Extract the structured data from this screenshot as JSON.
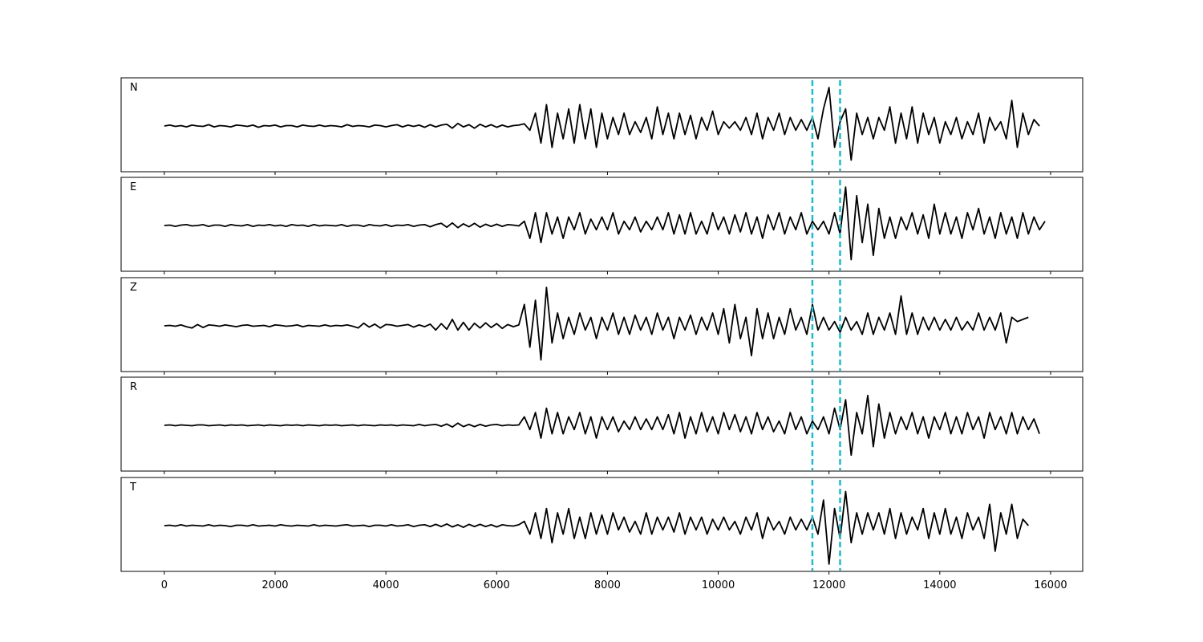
{
  "chart_data": {
    "type": "line",
    "title": "",
    "xlabel": "",
    "ylabel": "",
    "xlim": [
      -780,
      16580
    ],
    "ylim": [
      -1.1,
      1.1
    ],
    "grid": false,
    "x_ticks": [
      0,
      2000,
      4000,
      6000,
      8000,
      10000,
      12000,
      14000,
      16000
    ],
    "x_tick_labels": [
      "0",
      "2000",
      "4000",
      "6000",
      "8000",
      "10000",
      "12000",
      "14000",
      "16000"
    ],
    "sample_step": 100,
    "x_start": 0,
    "markers": {
      "x": [
        11700,
        12200
      ],
      "color": "#17becf",
      "style": "dashed"
    },
    "line_color": "#000000",
    "panels": [
      {
        "label": "N",
        "values": [
          0,
          0.02,
          -0.01,
          0.01,
          -0.02,
          0.02,
          0,
          -0.01,
          0.03,
          -0.02,
          0.01,
          0,
          -0.02,
          0.02,
          0.01,
          -0.01,
          0.02,
          -0.03,
          0.01,
          0,
          0.02,
          -0.02,
          0.01,
          0.01,
          -0.02,
          0.02,
          0,
          -0.01,
          0.02,
          -0.01,
          0.01,
          0,
          -0.02,
          0.03,
          -0.01,
          0.01,
          0,
          -0.02,
          0.02,
          0.01,
          -0.02,
          0.01,
          0.03,
          -0.02,
          0.02,
          -0.01,
          0.02,
          -0.03,
          0.03,
          -0.02,
          0.02,
          0.04,
          -0.05,
          0.06,
          -0.02,
          0.03,
          -0.05,
          0.04,
          -0.02,
          0.03,
          -0.03,
          0.02,
          -0.02,
          0.01,
          0.02,
          0.05,
          -0.1,
          0.3,
          -0.4,
          0.5,
          -0.5,
          0.3,
          -0.3,
          0.4,
          -0.4,
          0.5,
          -0.3,
          0.4,
          -0.5,
          0.3,
          -0.3,
          0.2,
          -0.2,
          0.3,
          -0.2,
          0.1,
          -0.15,
          0.2,
          -0.3,
          0.45,
          -0.2,
          0.3,
          -0.3,
          0.3,
          -0.2,
          0.25,
          -0.3,
          0.2,
          -0.1,
          0.35,
          -0.2,
          0.1,
          -0.05,
          0.1,
          -0.1,
          0.2,
          -0.2,
          0.3,
          -0.3,
          0.2,
          -0.1,
          0.3,
          -0.2,
          0.2,
          -0.1,
          0.15,
          -0.1,
          0.2,
          -0.3,
          0.4,
          0.9,
          -0.5,
          0.1,
          0.4,
          -0.8,
          0.3,
          -0.2,
          0.2,
          -0.3,
          0.2,
          -0.1,
          0.45,
          -0.4,
          0.3,
          -0.3,
          0.45,
          -0.4,
          0.3,
          -0.2,
          0.2,
          -0.4,
          0.1,
          -0.2,
          0.2,
          -0.3,
          0.1,
          -0.2,
          0.3,
          -0.4,
          0.2,
          -0.1,
          0.1,
          -0.3,
          0.6,
          -0.5,
          0.3,
          -0.2,
          0.15,
          0
        ]
      },
      {
        "label": "E",
        "values": [
          0,
          0.01,
          -0.02,
          0.01,
          0.02,
          -0.01,
          0,
          0.02,
          -0.02,
          0.01,
          0.01,
          -0.02,
          0.02,
          0,
          -0.01,
          0.02,
          -0.02,
          0.01,
          0,
          0.02,
          -0.01,
          0.01,
          -0.02,
          0.02,
          0,
          0.01,
          -0.02,
          0.02,
          -0.01,
          0.01,
          0,
          -0.01,
          0.02,
          -0.02,
          0.01,
          0.01,
          -0.02,
          0.02,
          0,
          -0.01,
          0.02,
          -0.02,
          0.01,
          0,
          0.02,
          -0.02,
          0.01,
          0.02,
          -0.03,
          0.02,
          0.05,
          -0.04,
          0.06,
          -0.05,
          0.04,
          -0.03,
          0.05,
          -0.04,
          0.03,
          -0.02,
          0.03,
          -0.02,
          0.02,
          0.01,
          -0.01,
          0.1,
          -0.3,
          0.3,
          -0.4,
          0.3,
          -0.2,
          0.2,
          -0.3,
          0.2,
          -0.1,
          0.3,
          -0.2,
          0.15,
          -0.1,
          0.2,
          -0.1,
          0.3,
          -0.2,
          0.1,
          -0.1,
          0.2,
          -0.15,
          0.1,
          -0.1,
          0.2,
          -0.1,
          0.3,
          -0.2,
          0.25,
          -0.2,
          0.3,
          -0.2,
          0.1,
          -0.2,
          0.3,
          -0.1,
          0.2,
          -0.2,
          0.25,
          -0.15,
          0.3,
          -0.2,
          0.2,
          -0.3,
          0.25,
          -0.1,
          0.3,
          -0.2,
          0.2,
          -0.1,
          0.3,
          -0.2,
          0.1,
          -0.1,
          0.1,
          -0.2,
          0.3,
          -0.2,
          0.9,
          -0.8,
          0.7,
          -0.4,
          0.5,
          -0.7,
          0.4,
          -0.3,
          0.2,
          -0.3,
          0.2,
          -0.1,
          0.3,
          -0.2,
          0.25,
          -0.3,
          0.5,
          -0.2,
          0.3,
          -0.2,
          0.2,
          -0.3,
          0.3,
          -0.1,
          0.4,
          -0.2,
          0.2,
          -0.3,
          0.3,
          -0.2,
          0.2,
          -0.3,
          0.3,
          -0.2,
          0.2,
          -0.1,
          0.1
        ]
      },
      {
        "label": "Z",
        "values": [
          0,
          0.01,
          -0.01,
          0.02,
          -0.02,
          -0.05,
          0.03,
          -0.04,
          0.02,
          0.01,
          -0.01,
          0.02,
          0,
          -0.02,
          0.01,
          0.02,
          -0.01,
          0,
          0.01,
          -0.02,
          0.02,
          0.01,
          -0.01,
          0,
          0.02,
          -0.02,
          0.01,
          0,
          -0.01,
          0.02,
          -0.01,
          0.01,
          0,
          0.02,
          -0.01,
          -0.05,
          0.06,
          -0.03,
          0.04,
          -0.05,
          0.03,
          0.02,
          -0.01,
          0.01,
          0.03,
          -0.03,
          0.02,
          -0.02,
          0.04,
          -0.1,
          0.05,
          -0.08,
          0.15,
          -0.1,
          0.08,
          -0.1,
          0.06,
          -0.05,
          0.07,
          -0.04,
          0.05,
          -0.06,
          0.03,
          -0.02,
          0.02,
          0.5,
          -0.5,
          0.6,
          -0.8,
          0.9,
          -0.4,
          0.3,
          -0.3,
          0.2,
          -0.2,
          0.3,
          -0.1,
          0.2,
          -0.3,
          0.2,
          -0.1,
          0.3,
          -0.2,
          0.2,
          -0.2,
          0.25,
          -0.1,
          0.2,
          -0.2,
          0.3,
          -0.1,
          0.2,
          -0.3,
          0.2,
          -0.1,
          0.25,
          -0.2,
          0.2,
          -0.1,
          0.3,
          -0.2,
          0.4,
          -0.4,
          0.5,
          -0.3,
          0.2,
          -0.7,
          0.4,
          -0.3,
          0.3,
          -0.3,
          0.2,
          -0.2,
          0.4,
          -0.1,
          0.2,
          -0.2,
          0.5,
          -0.1,
          0.2,
          -0.1,
          0.1,
          -0.15,
          0.2,
          -0.1,
          0.1,
          -0.2,
          0.3,
          -0.2,
          0.2,
          -0.1,
          0.3,
          -0.2,
          0.7,
          -0.2,
          0.3,
          -0.2,
          0.2,
          -0.1,
          0.2,
          -0.1,
          0.15,
          -0.1,
          0.2,
          -0.1,
          0.1,
          -0.1,
          0.3,
          -0.1,
          0.2,
          -0.1,
          0.3,
          -0.4,
          0.2,
          0.1,
          0.15,
          0.2
        ]
      },
      {
        "label": "R",
        "values": [
          0,
          0.01,
          -0.01,
          0.01,
          0,
          -0.01,
          0.01,
          0.01,
          -0.01,
          0,
          0.01,
          -0.01,
          0.01,
          0,
          0.01,
          -0.01,
          0,
          0.01,
          -0.01,
          0.01,
          0,
          -0.01,
          0.01,
          0,
          0.01,
          -0.01,
          0.01,
          0,
          -0.01,
          0.01,
          0,
          0.01,
          -0.01,
          0,
          0.01,
          -0.01,
          0.01,
          0,
          -0.01,
          0.01,
          0,
          0.01,
          -0.01,
          0.01,
          0,
          -0.01,
          0.02,
          -0.01,
          0.01,
          0.02,
          -0.02,
          0.03,
          -0.04,
          0.05,
          -0.03,
          0.02,
          -0.03,
          0.02,
          -0.02,
          0.01,
          0.02,
          -0.01,
          0.01,
          0,
          0.01,
          0.2,
          -0.1,
          0.3,
          -0.3,
          0.4,
          -0.2,
          0.3,
          -0.2,
          0.2,
          -0.1,
          0.3,
          -0.2,
          0.2,
          -0.3,
          0.2,
          -0.1,
          0.2,
          -0.15,
          0.1,
          -0.1,
          0.2,
          -0.1,
          0.15,
          -0.1,
          0.2,
          -0.1,
          0.25,
          -0.2,
          0.3,
          -0.3,
          0.2,
          -0.2,
          0.3,
          -0.15,
          0.2,
          -0.2,
          0.3,
          -0.1,
          0.25,
          -0.15,
          0.2,
          -0.2,
          0.3,
          -0.1,
          0.2,
          -0.15,
          0.1,
          -0.2,
          0.3,
          -0.1,
          0.2,
          -0.2,
          0.1,
          -0.1,
          0.2,
          -0.2,
          0.4,
          -0.1,
          0.6,
          -0.7,
          0.3,
          -0.2,
          0.7,
          -0.5,
          0.5,
          -0.3,
          0.3,
          -0.2,
          0.2,
          -0.1,
          0.3,
          -0.2,
          0.2,
          -0.3,
          0.2,
          -0.1,
          0.3,
          -0.2,
          0.2,
          -0.2,
          0.3,
          -0.1,
          0.2,
          -0.3,
          0.3,
          -0.1,
          0.2,
          -0.2,
          0.3,
          -0.2,
          0.2,
          -0.1,
          0.15,
          -0.2
        ]
      },
      {
        "label": "T",
        "values": [
          0,
          0.01,
          -0.01,
          0.02,
          -0.01,
          0.01,
          0,
          -0.01,
          0.02,
          -0.01,
          0.01,
          0,
          -0.02,
          0.01,
          0.01,
          -0.01,
          0.02,
          -0.01,
          0,
          0.01,
          -0.01,
          0.02,
          0,
          -0.01,
          0.01,
          0,
          -0.01,
          0.02,
          -0.01,
          0.01,
          0,
          -0.01,
          0.01,
          0.02,
          -0.01,
          0,
          0.01,
          -0.02,
          0.01,
          0.01,
          -0.01,
          0.02,
          -0.01,
          0,
          0.02,
          -0.02,
          0.01,
          0.02,
          -0.02,
          0.03,
          -0.02,
          0.04,
          -0.03,
          0.02,
          -0.04,
          0.03,
          -0.02,
          0.03,
          -0.02,
          0.02,
          -0.03,
          0.02,
          0,
          -0.01,
          0.02,
          0.1,
          -0.2,
          0.3,
          -0.3,
          0.4,
          -0.4,
          0.3,
          -0.2,
          0.4,
          -0.3,
          0.2,
          -0.3,
          0.3,
          -0.2,
          0.25,
          -0.2,
          0.3,
          -0.1,
          0.2,
          -0.15,
          0.1,
          -0.2,
          0.3,
          -0.2,
          0.2,
          -0.1,
          0.2,
          -0.15,
          0.3,
          -0.2,
          0.2,
          -0.1,
          0.2,
          -0.2,
          0.15,
          -0.1,
          0.2,
          -0.1,
          0.1,
          -0.2,
          0.2,
          -0.1,
          0.3,
          -0.3,
          0.2,
          -0.1,
          0.1,
          -0.2,
          0.2,
          -0.1,
          0.15,
          -0.1,
          0.2,
          -0.2,
          0.6,
          -0.9,
          0.4,
          -0.3,
          0.8,
          -0.4,
          0.3,
          -0.2,
          0.3,
          -0.1,
          0.3,
          -0.2,
          0.4,
          -0.3,
          0.3,
          -0.2,
          0.2,
          -0.1,
          0.4,
          -0.3,
          0.3,
          -0.2,
          0.4,
          -0.2,
          0.2,
          -0.3,
          0.3,
          -0.1,
          0.2,
          -0.3,
          0.5,
          -0.6,
          0.3,
          -0.2,
          0.5,
          -0.3,
          0.15,
          0
        ]
      }
    ]
  }
}
